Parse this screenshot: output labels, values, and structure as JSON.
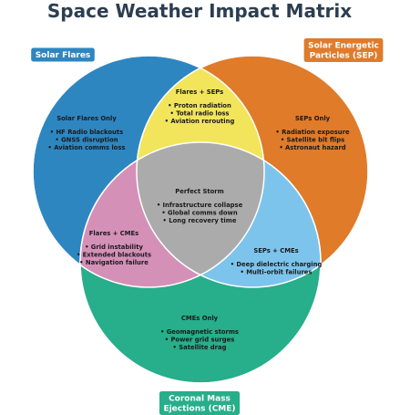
{
  "title": "Space Weather Impact Matrix",
  "colors": {
    "solar_flares": "#2e86c1",
    "sep": "#e07b2a",
    "cme": "#27ae8a",
    "flares_sep": "#f2e55c",
    "flares_cme": "#d590b8",
    "sep_cme": "#7cc4ec",
    "center": "#ababab",
    "title": "#2c3e50"
  },
  "badges": {
    "solar_flares": [
      "Solar Flares"
    ],
    "sep": [
      "Solar Energetic",
      "Particles (SEP)"
    ],
    "cme": [
      "Coronal Mass",
      "Ejections (CME)"
    ]
  },
  "regions": {
    "flares_only": {
      "title": "Solar Flares Only",
      "items": [
        "• HF Radio blackouts",
        "• GNSS disruption",
        "• Aviation comms loss"
      ]
    },
    "flares_sep": {
      "title": "Flares + SEPs",
      "items": [
        "• Proton radiation",
        "• Total radio loss",
        "• Aviation rerouting"
      ]
    },
    "sep_only": {
      "title": "SEPs Only",
      "items": [
        "• Radiation exposure",
        "• Satellite bit flips",
        "• Astronaut hazard"
      ]
    },
    "center": {
      "title": "Perfect Storm",
      "items": [
        "• Infrastructure collapse",
        "• Global comms down",
        "• Long recovery time"
      ]
    },
    "flares_cme": {
      "title": "Flares + CMEs",
      "items": [
        "• Grid instability",
        "• Extended blackouts",
        "• Navigation failure"
      ]
    },
    "sep_cme": {
      "title": "SEPs + CMEs",
      "items": [
        "• Deep dielectric charging",
        "• Multi-orbit failures"
      ]
    },
    "cme_only": {
      "title": "CMEs Only",
      "items": [
        "• Geomagnetic storms",
        "• Power grid surges",
        "• Satellite drag"
      ]
    }
  }
}
